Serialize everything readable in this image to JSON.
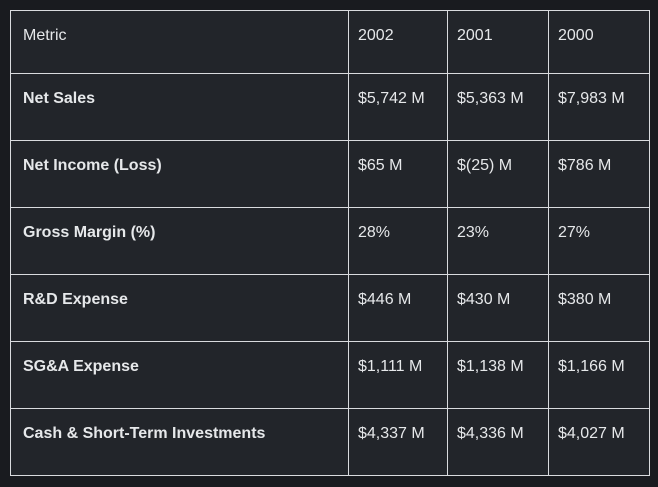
{
  "page": {
    "background": "#191b1f"
  },
  "table_style": {
    "cell_background": "#22252a",
    "border_color": "#d9dbde",
    "text_color": "#e6e8ea"
  },
  "chart_data": {
    "type": "table",
    "title": "",
    "columns": [
      "Metric",
      "2002",
      "2001",
      "2000"
    ],
    "rows": [
      {
        "metric": "Net Sales",
        "values": [
          "$5,742 M",
          "$5,363 M",
          "$7,983 M"
        ]
      },
      {
        "metric": "Net Income (Loss)",
        "values": [
          "$65 M",
          "$(25) M",
          "$786 M"
        ]
      },
      {
        "metric": "Gross Margin (%)",
        "values": [
          "28%",
          "23%",
          "27%"
        ]
      },
      {
        "metric": "R&D Expense",
        "values": [
          "$446 M",
          "$430 M",
          "$380 M"
        ]
      },
      {
        "metric": "SG&A Expense",
        "values": [
          "$1,111 M",
          "$1,138 M",
          "$1,166 M"
        ]
      },
      {
        "metric": "Cash & Short-Term Investments",
        "values": [
          "$4,337 M",
          "$4,336 M",
          "$4,027 M"
        ]
      }
    ]
  }
}
